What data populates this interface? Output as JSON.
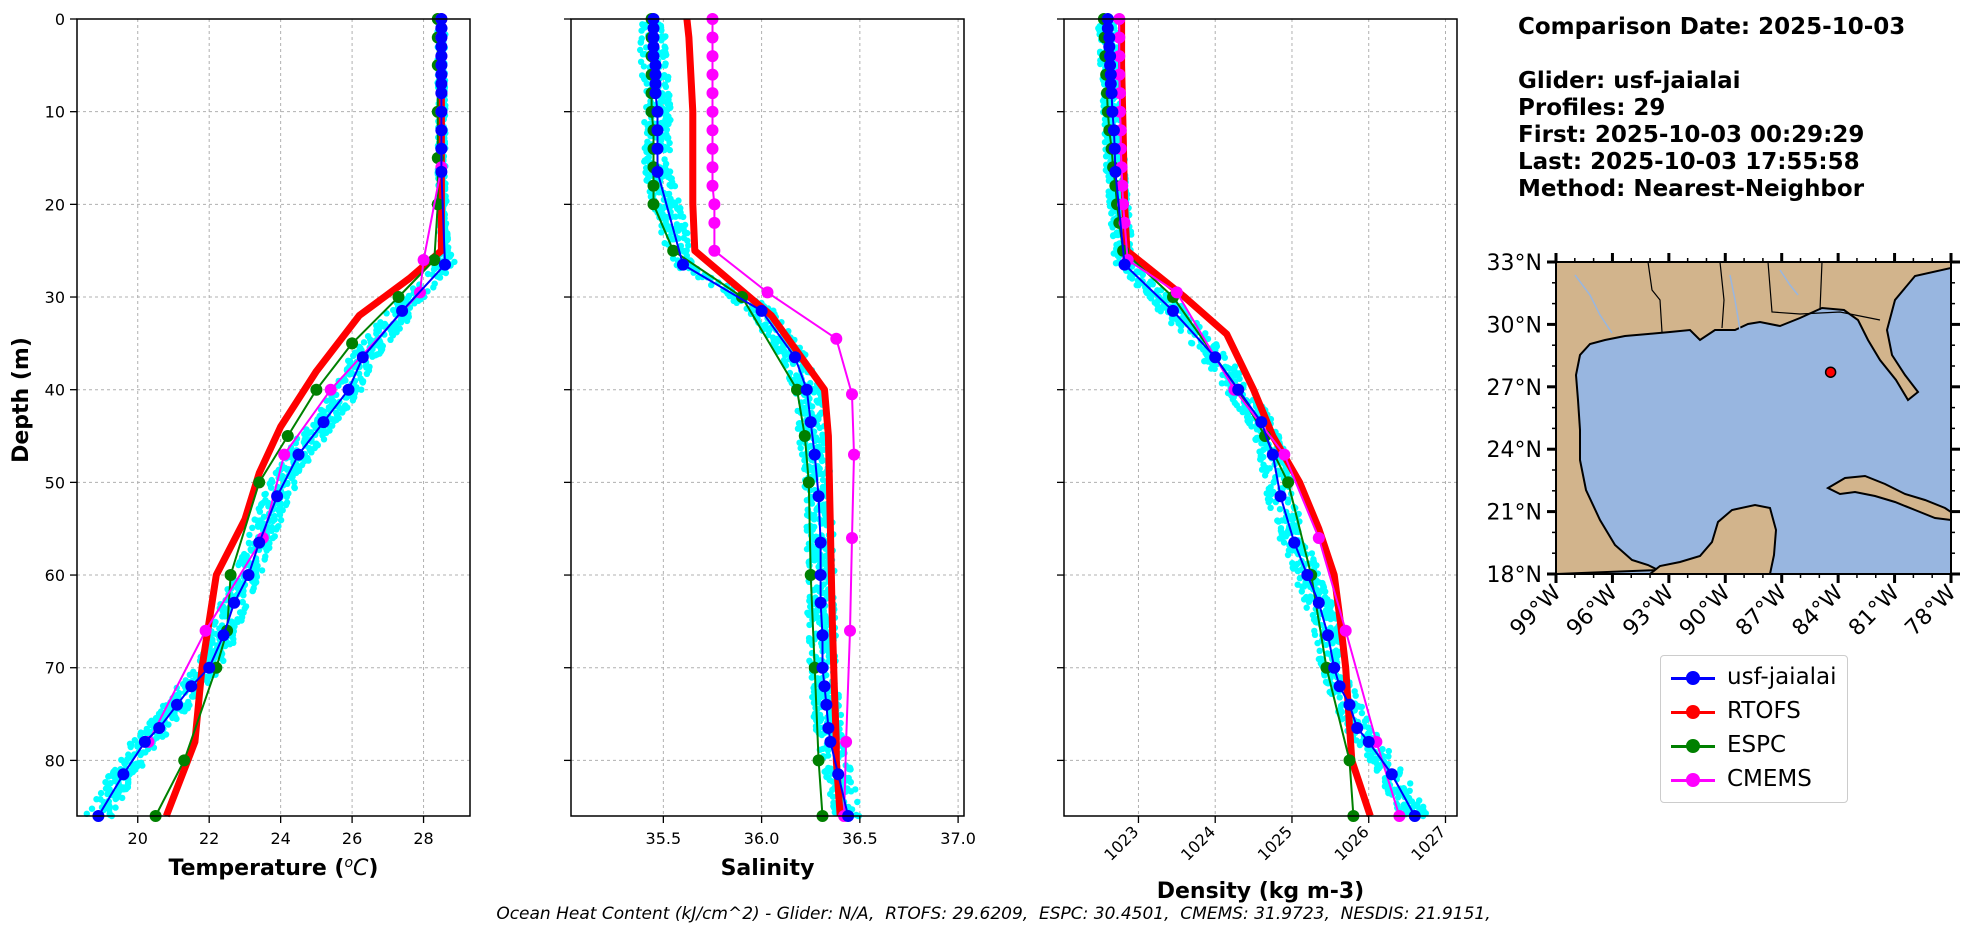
{
  "info": {
    "comparison_date": "Comparison Date: 2025-10-03",
    "glider": "Glider: usf-jaialai",
    "profiles": "Profiles: 29",
    "first": "First: 2025-10-03 00:29:29",
    "last": "Last: 2025-10-03 17:55:58",
    "method": "Method: Nearest-Neighbor"
  },
  "footer": "Ocean Heat Content (kJ/cm^2) - Glider: N/A,  RTOFS: 29.6209,  ESPC: 30.4501,  CMEMS: 31.9723,  NESDIS: 21.9151,",
  "legend": [
    {
      "label": "usf-jaialai",
      "color": "#0000ff"
    },
    {
      "label": "RTOFS",
      "color": "#ff0000"
    },
    {
      "label": "ESPC",
      "color": "#008000"
    },
    {
      "label": "CMEMS",
      "color": "#ff00ff"
    }
  ],
  "colors": {
    "glider_raw": "#00ffff",
    "land": "#d2b48c",
    "ocean": "#98b6e0"
  },
  "chart_data": [
    {
      "type": "line",
      "xlabel": "Temperature ($^oC$)",
      "ylabel": "Depth (m)",
      "xlim": [
        18.3,
        29.3
      ],
      "ylim": [
        86,
        0
      ],
      "xticks": [
        20,
        22,
        24,
        26,
        28
      ],
      "yticks": [
        0,
        10,
        20,
        30,
        40,
        50,
        60,
        70,
        80
      ],
      "grid": true,
      "raw_series": {
        "name": "usf-jaialai profiles",
        "color": "#00ffff"
      },
      "series": [
        {
          "name": "usf-jaialai",
          "color": "#0000ff",
          "width": 2,
          "markers": true,
          "x": [
            28.5,
            28.5,
            28.5,
            28.5,
            28.5,
            28.5,
            28.5,
            28.5,
            28.5,
            28.5,
            28.5,
            28.5,
            28.5,
            28.6,
            27.4,
            26.3,
            25.9,
            25.2,
            24.5,
            23.9,
            23.4,
            23.1,
            22.7,
            22.4,
            22.0,
            21.5,
            21.1,
            20.6,
            20.2,
            19.6,
            18.9
          ],
          "y": [
            0,
            1,
            2,
            3,
            4,
            5,
            6,
            7,
            8,
            10,
            12,
            14,
            16.5,
            26.5,
            31.5,
            36.5,
            40,
            43.5,
            47,
            51.5,
            56.5,
            60,
            63,
            66.5,
            70,
            72,
            74,
            76.5,
            78,
            81.5,
            86
          ]
        },
        {
          "name": "RTOFS",
          "color": "#ff0000",
          "width": 7,
          "markers": false,
          "x": [
            28.5,
            28.5,
            28.5,
            27.6,
            26.2,
            25.0,
            24.0,
            23.4,
            23.0,
            22.2,
            21.8,
            21.6,
            21.4,
            20.8
          ],
          "y": [
            0,
            20,
            25,
            28,
            32,
            38,
            44,
            49,
            54,
            60,
            70,
            78,
            80,
            86
          ]
        },
        {
          "name": "ESPC",
          "color": "#008000",
          "width": 2,
          "markers": true,
          "x": [
            28.4,
            28.4,
            28.4,
            28.4,
            28.4,
            28.4,
            28.3,
            27.3,
            26.0,
            25.0,
            24.2,
            23.4,
            22.6,
            22.5,
            22.2,
            21.3,
            20.5
          ],
          "y": [
            0,
            2,
            5,
            10,
            15,
            20,
            26,
            30,
            35,
            40,
            45,
            50,
            60,
            66,
            70,
            80,
            86
          ]
        },
        {
          "name": "CMEMS",
          "color": "#ff00ff",
          "width": 2,
          "markers": true,
          "x": [
            28.5,
            28.5,
            28.5,
            28.5,
            28.5,
            28.5,
            28.5,
            28.5,
            28.5,
            28.5,
            28.0,
            27.9,
            25.4,
            24.1,
            23.5,
            21.9,
            20.3
          ],
          "y": [
            0,
            1,
            2,
            4,
            6,
            8,
            10,
            12,
            14,
            16,
            26,
            29.5,
            40,
            47,
            56,
            66,
            78
          ]
        }
      ]
    },
    {
      "type": "line",
      "xlabel": "Salinity",
      "ylabel": "",
      "xlim": [
        35.03,
        37.03
      ],
      "ylim": [
        86,
        0
      ],
      "xticks": [
        35.5,
        36.0,
        36.5,
        37.0
      ],
      "yticks": [
        0,
        10,
        20,
        30,
        40,
        50,
        60,
        70,
        80
      ],
      "grid": true,
      "raw_series": {
        "name": "usf-jaialai profiles",
        "color": "#00ffff"
      },
      "series": [
        {
          "name": "usf-jaialai",
          "color": "#0000ff",
          "width": 2,
          "markers": true,
          "x": [
            35.45,
            35.45,
            35.45,
            35.45,
            35.45,
            35.46,
            35.46,
            35.46,
            35.46,
            35.47,
            35.47,
            35.47,
            35.47,
            35.6,
            36.0,
            36.17,
            36.23,
            36.25,
            36.27,
            36.29,
            36.3,
            36.3,
            36.3,
            36.31,
            36.31,
            36.32,
            36.33,
            36.34,
            36.35,
            36.39,
            36.44
          ],
          "y": [
            0,
            1,
            2,
            3,
            4,
            5,
            6,
            7,
            8,
            10,
            12,
            14,
            16.5,
            26.5,
            31.5,
            36.5,
            40,
            43.5,
            47,
            51.5,
            56.5,
            60,
            63,
            66.5,
            70,
            72,
            74,
            76.5,
            78,
            81.5,
            86
          ]
        },
        {
          "name": "RTOFS",
          "color": "#ff0000",
          "width": 7,
          "markers": false,
          "x": [
            35.62,
            35.63,
            35.65,
            35.65,
            35.66,
            36.05,
            36.32,
            36.34,
            36.35,
            36.36,
            36.37,
            36.38,
            36.38,
            36.4
          ],
          "y": [
            0,
            2,
            10,
            20,
            25,
            32,
            40,
            45,
            55,
            65,
            72,
            78,
            80,
            86
          ]
        },
        {
          "name": "ESPC",
          "color": "#008000",
          "width": 2,
          "markers": true,
          "x": [
            35.44,
            35.44,
            35.44,
            35.44,
            35.44,
            35.44,
            35.45,
            35.45,
            35.45,
            35.45,
            35.45,
            35.55,
            35.9,
            36.18,
            36.22,
            36.24,
            36.25,
            36.27,
            36.29,
            36.31
          ],
          "y": [
            0,
            2,
            4,
            6,
            8,
            10,
            12,
            14,
            16,
            18,
            20,
            25,
            30,
            40,
            45,
            50,
            60,
            70,
            80,
            86
          ]
        },
        {
          "name": "CMEMS",
          "color": "#ff00ff",
          "width": 2,
          "markers": true,
          "x": [
            35.75,
            35.75,
            35.75,
            35.75,
            35.75,
            35.75,
            35.75,
            35.75,
            35.75,
            35.75,
            35.76,
            35.76,
            35.76,
            36.03,
            36.38,
            36.46,
            36.47,
            36.46,
            36.45,
            36.43,
            36.42
          ],
          "y": [
            0,
            2,
            4,
            6,
            8,
            10,
            12,
            14,
            16,
            18,
            20,
            22,
            25,
            29.5,
            34.5,
            40.5,
            47,
            56,
            66,
            78,
            86
          ]
        }
      ]
    },
    {
      "type": "line",
      "xlabel": "Density (kg m-3)",
      "ylabel": "",
      "xlim": [
        1022.03,
        1027.15
      ],
      "ylim": [
        86,
        0
      ],
      "xticks": [
        1023,
        1024,
        1025,
        1026,
        1027
      ],
      "yticks": [
        0,
        10,
        20,
        30,
        40,
        50,
        60,
        70,
        80
      ],
      "grid": true,
      "raw_series": {
        "name": "usf-jaialai profiles",
        "color": "#00ffff"
      },
      "series": [
        {
          "name": "usf-jaialai",
          "color": "#0000ff",
          "width": 2,
          "markers": true,
          "x": [
            1022.6,
            1022.6,
            1022.62,
            1022.62,
            1022.63,
            1022.63,
            1022.64,
            1022.64,
            1022.65,
            1022.66,
            1022.68,
            1022.69,
            1022.7,
            1022.82,
            1023.45,
            1024.0,
            1024.3,
            1024.6,
            1024.75,
            1024.85,
            1025.03,
            1025.2,
            1025.35,
            1025.47,
            1025.55,
            1025.62,
            1025.75,
            1025.85,
            1026.0,
            1026.3,
            1026.6
          ],
          "y": [
            0,
            1,
            2,
            3,
            4,
            5,
            6,
            7,
            8,
            10,
            12,
            14,
            16.5,
            26.5,
            31.5,
            36.5,
            40,
            43.5,
            47,
            51.5,
            56.5,
            60,
            63,
            66.5,
            70,
            72,
            74,
            76.5,
            78,
            81.5,
            86
          ]
        },
        {
          "name": "RTOFS",
          "color": "#ff0000",
          "width": 7,
          "markers": false,
          "x": [
            1022.78,
            1022.78,
            1022.8,
            1022.82,
            1022.85,
            1023.6,
            1024.15,
            1024.5,
            1024.75,
            1025.1,
            1025.35,
            1025.55,
            1025.63,
            1025.7,
            1025.78,
            1026.02
          ],
          "y": [
            0,
            5,
            12,
            20,
            25,
            30,
            34,
            40,
            45,
            50,
            55,
            60,
            65,
            70,
            80,
            86
          ]
        },
        {
          "name": "ESPC",
          "color": "#008000",
          "width": 2,
          "markers": true,
          "x": [
            1022.55,
            1022.56,
            1022.57,
            1022.58,
            1022.59,
            1022.6,
            1022.62,
            1022.65,
            1022.67,
            1022.7,
            1022.72,
            1022.75,
            1022.8,
            1023.45,
            1024.3,
            1024.65,
            1024.95,
            1025.25,
            1025.45,
            1025.75,
            1025.8
          ],
          "y": [
            0,
            2,
            4,
            6,
            8,
            10,
            12,
            14,
            16,
            18,
            20,
            22,
            25,
            30,
            40,
            45,
            50,
            60,
            70,
            80,
            86
          ]
        },
        {
          "name": "CMEMS",
          "color": "#ff00ff",
          "width": 2,
          "markers": true,
          "x": [
            1022.75,
            1022.75,
            1022.75,
            1022.75,
            1022.76,
            1022.76,
            1022.77,
            1022.77,
            1022.78,
            1022.79,
            1022.8,
            1022.82,
            1022.86,
            1023.5,
            1024.25,
            1024.9,
            1025.35,
            1025.7,
            1026.1,
            1026.4
          ],
          "y": [
            0,
            2,
            4,
            6,
            8,
            10,
            12,
            14,
            16,
            18,
            20,
            22,
            26,
            29.5,
            40,
            47,
            56,
            66,
            78,
            86
          ]
        }
      ]
    }
  ],
  "map": {
    "lat_labels": [
      "33°N",
      "30°N",
      "27°N",
      "24°N",
      "21°N",
      "18°N"
    ],
    "lon_labels": [
      "99°W",
      "96°W",
      "93°W",
      "90°W",
      "87°W",
      "84°W",
      "81°W",
      "78°W"
    ],
    "lon_range": [
      -99,
      -78
    ],
    "lat_range": [
      18,
      33
    ],
    "glider_position": {
      "lon": -84.4,
      "lat": 27.7,
      "color": "#ff0000"
    }
  }
}
